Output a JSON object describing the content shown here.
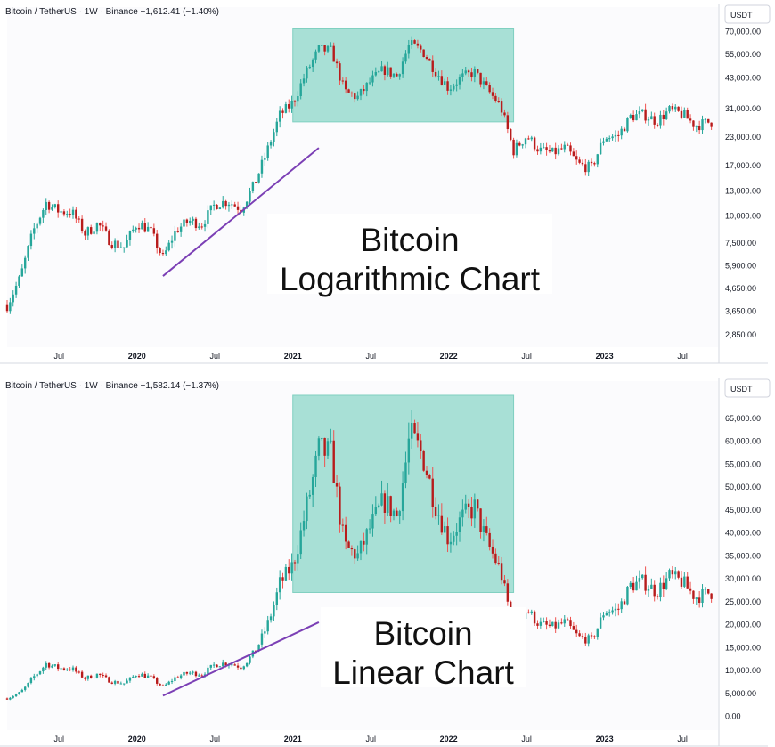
{
  "chart_data": [
    {
      "type": "candlestick",
      "scale": "logarithmic",
      "header": "Bitcoin / TetherUS · 1W · Binance  −1,612.41 (−1.40%)",
      "currency_label": "USDT",
      "overlay_lines": [
        "Bitcoin",
        "Logarithmic Chart"
      ],
      "y_ticks": [
        2850,
        3650,
        4650,
        5900,
        7500,
        10000,
        13000,
        17000,
        23000,
        31000,
        43000,
        55000,
        70000
      ],
      "y_tick_labels": [
        "2,850.00",
        "3,650.00",
        "4,650.00",
        "5,900.00",
        "7,500.00",
        "10,000.00",
        "13,000.00",
        "17,000.00",
        "23,000.00",
        "31,000.00",
        "43,000.00",
        "55,000.00",
        "70,000.00"
      ],
      "x_tick_labels": [
        {
          "label": "Jul",
          "date": "2019-07"
        },
        {
          "label": "2020",
          "date": "2020-01"
        },
        {
          "label": "Jul",
          "date": "2020-07"
        },
        {
          "label": "2021",
          "date": "2021-01"
        },
        {
          "label": "Jul",
          "date": "2021-07"
        },
        {
          "label": "2022",
          "date": "2022-01"
        },
        {
          "label": "Jul",
          "date": "2022-07"
        },
        {
          "label": "2023",
          "date": "2023-01"
        },
        {
          "label": "Jul",
          "date": "2023-07"
        }
      ],
      "highlight_zone": {
        "x_from": "2021-01",
        "x_to": "2022-06",
        "y_from": 27000,
        "y_to": 72000
      },
      "trendline": {
        "x_from": "2020-03",
        "y_from": 5300,
        "x_to": "2021-03",
        "y_to": 20500
      },
      "colors": {
        "up": "#26a69a",
        "down": "#ef5350",
        "body_up": "#26a69a",
        "body_down": "#b71c1c",
        "zone": "#a8e0d6",
        "trend": "#7b3fb5"
      }
    },
    {
      "type": "candlestick",
      "scale": "linear",
      "header": "Bitcoin / TetherUS · 1W · Binance  −1,582.14 (−1.37%)",
      "currency_label": "USDT",
      "overlay_lines": [
        "Bitcoin",
        "Linear Chart"
      ],
      "y_ticks": [
        0,
        5000,
        10000,
        15000,
        20000,
        25000,
        30000,
        35000,
        40000,
        45000,
        50000,
        55000,
        60000,
        65000
      ],
      "y_tick_labels": [
        "0.00",
        "5,000.00",
        "10,000.00",
        "15,000.00",
        "20,000.00",
        "25,000.00",
        "30,000.00",
        "35,000.00",
        "40,000.00",
        "45,000.00",
        "50,000.00",
        "55,000.00",
        "60,000.00",
        "65,000.00"
      ],
      "x_tick_labels": [
        {
          "label": "Jul",
          "date": "2019-07"
        },
        {
          "label": "2020",
          "date": "2020-01"
        },
        {
          "label": "Jul",
          "date": "2020-07"
        },
        {
          "label": "2021",
          "date": "2021-01"
        },
        {
          "label": "Jul",
          "date": "2021-07"
        },
        {
          "label": "2022",
          "date": "2022-01"
        },
        {
          "label": "Jul",
          "date": "2022-07"
        },
        {
          "label": "2023",
          "date": "2023-01"
        },
        {
          "label": "Jul",
          "date": "2023-07"
        }
      ],
      "highlight_zone": {
        "x_from": "2021-01",
        "x_to": "2022-06",
        "y_from": 27000,
        "y_to": 70000
      },
      "trendline": {
        "x_from": "2020-03",
        "y_from": 4500,
        "x_to": "2021-03",
        "y_to": 20500
      },
      "colors": {
        "up": "#26a69a",
        "down": "#ef5350",
        "body_up": "#26a69a",
        "body_down": "#b71c1c",
        "zone": "#a8e0d6",
        "trend": "#7b3fb5"
      }
    }
  ],
  "series": {
    "name": "BTC/USDT weekly (approx. close)",
    "dates": [
      "2019-01",
      "2019-03",
      "2019-04",
      "2019-05",
      "2019-06",
      "2019-07",
      "2019-08",
      "2019-09",
      "2019-10",
      "2019-11",
      "2019-12",
      "2020-01",
      "2020-02",
      "2020-03",
      "2020-04",
      "2020-05",
      "2020-06",
      "2020-07",
      "2020-08",
      "2020-09",
      "2020-10",
      "2020-11",
      "2020-12",
      "2021-01",
      "2021-02",
      "2021-03",
      "2021-04",
      "2021-05",
      "2021-06",
      "2021-07",
      "2021-08",
      "2021-09",
      "2021-10",
      "2021-11",
      "2021-12",
      "2022-01",
      "2022-02",
      "2022-03",
      "2022-04",
      "2022-05",
      "2022-06",
      "2022-07",
      "2022-08",
      "2022-09",
      "2022-10",
      "2022-11",
      "2022-12",
      "2023-01",
      "2023-02",
      "2023-03",
      "2023-04",
      "2023-05",
      "2023-06",
      "2023-07",
      "2023-08",
      "2023-09"
    ],
    "close": [
      3600,
      3900,
      5200,
      8500,
      11500,
      10500,
      10400,
      8300,
      9200,
      7600,
      7200,
      9300,
      8600,
      6400,
      8600,
      9500,
      9200,
      11300,
      11700,
      10800,
      13800,
      19700,
      29000,
      33000,
      45000,
      58000,
      57000,
      37000,
      35000,
      41500,
      47000,
      43800,
      61300,
      57000,
      46300,
      38500,
      43200,
      45500,
      37700,
      31800,
      19900,
      23300,
      20000,
      19400,
      20500,
      17200,
      16600,
      23100,
      23100,
      28500,
      29300,
      27200,
      30500,
      29300,
      26000,
      26900
    ]
  }
}
